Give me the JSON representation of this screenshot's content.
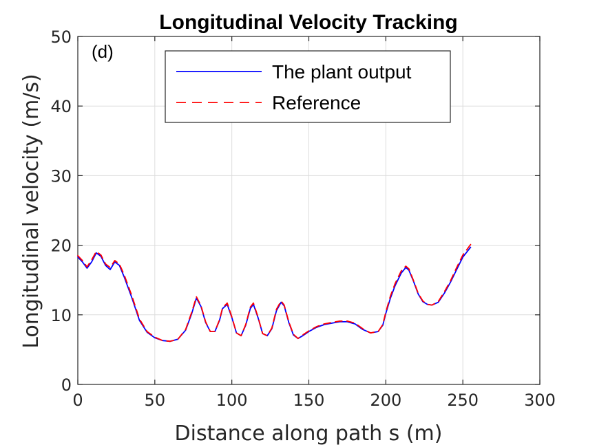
{
  "chart_data": {
    "type": "line",
    "title": "Longitudinal Velocity Tracking",
    "annotation": "(d)",
    "xlabel": "Distance along path s (m)",
    "ylabel": "Longitudinal velocity (m/s)",
    "xlim": [
      0,
      300
    ],
    "ylim": [
      0,
      50
    ],
    "xticks": [
      0,
      50,
      100,
      150,
      200,
      250,
      300
    ],
    "yticks": [
      0,
      10,
      20,
      30,
      40,
      50
    ],
    "xtick_labels": [
      "0",
      "50",
      "100",
      "150",
      "200",
      "250",
      "300"
    ],
    "ytick_labels": [
      "0",
      "10",
      "20",
      "30",
      "40",
      "50"
    ],
    "grid": true,
    "legend_position": "top",
    "series": [
      {
        "name": "The plant output",
        "color": "#0000ff",
        "style": "solid",
        "x": [
          0,
          3,
          6,
          9,
          12,
          15,
          18,
          21,
          24,
          27,
          30,
          35,
          40,
          45,
          50,
          55,
          60,
          65,
          70,
          74,
          77,
          80,
          83,
          86,
          89,
          92,
          94,
          97,
          100,
          103,
          106,
          109,
          112,
          114,
          117,
          120,
          123,
          126,
          129,
          132,
          134,
          137,
          140,
          143,
          146,
          150,
          155,
          160,
          165,
          170,
          175,
          180,
          185,
          190,
          195,
          198,
          200,
          203,
          206,
          210,
          213,
          215,
          218,
          221,
          224,
          227,
          230,
          234,
          238,
          242,
          246,
          250,
          255
        ],
        "y": [
          18.3,
          17.6,
          16.7,
          17.6,
          18.9,
          18.4,
          17.1,
          16.5,
          17.6,
          17.1,
          15.5,
          12.5,
          9.2,
          7.5,
          6.7,
          6.3,
          6.2,
          6.5,
          7.8,
          10.2,
          12.4,
          11.2,
          8.9,
          7.6,
          7.6,
          9.2,
          10.9,
          11.5,
          9.6,
          7.4,
          7.0,
          8.5,
          10.9,
          11.5,
          9.6,
          7.3,
          7.0,
          8.0,
          10.6,
          11.8,
          11.3,
          8.9,
          7.1,
          6.6,
          7.0,
          7.6,
          8.2,
          8.6,
          8.8,
          9.0,
          9.0,
          8.7,
          7.9,
          7.4,
          7.6,
          8.5,
          10.2,
          12.4,
          14.2,
          16.0,
          16.8,
          16.4,
          14.8,
          13.0,
          11.9,
          11.5,
          11.4,
          11.8,
          13.1,
          14.7,
          16.5,
          18.3,
          19.7
        ]
      },
      {
        "name": "Reference",
        "color": "#ff0000",
        "style": "dashed",
        "x": [
          0,
          3,
          6,
          9,
          12,
          15,
          18,
          21,
          24,
          27,
          30,
          35,
          40,
          45,
          50,
          55,
          60,
          65,
          70,
          74,
          77,
          80,
          83,
          86,
          89,
          92,
          94,
          97,
          100,
          103,
          106,
          109,
          112,
          114,
          117,
          120,
          123,
          126,
          129,
          132,
          134,
          137,
          140,
          143,
          146,
          150,
          155,
          160,
          165,
          170,
          175,
          180,
          185,
          190,
          195,
          198,
          200,
          203,
          206,
          210,
          213,
          215,
          218,
          221,
          224,
          227,
          230,
          234,
          238,
          242,
          246,
          250,
          255
        ],
        "y": [
          18.5,
          17.8,
          16.9,
          17.9,
          19.1,
          18.6,
          17.3,
          16.8,
          17.8,
          17.3,
          15.8,
          12.8,
          9.4,
          7.6,
          6.8,
          6.3,
          6.2,
          6.5,
          7.9,
          10.4,
          12.6,
          11.3,
          9.0,
          7.6,
          7.6,
          9.3,
          11.0,
          11.7,
          9.7,
          7.4,
          7.0,
          8.6,
          11.1,
          11.7,
          9.7,
          7.3,
          7.0,
          8.1,
          10.8,
          12.0,
          11.4,
          9.0,
          7.2,
          6.6,
          7.1,
          7.7,
          8.3,
          8.7,
          8.9,
          9.1,
          9.1,
          8.8,
          8.0,
          7.4,
          7.6,
          8.6,
          10.4,
          12.7,
          14.5,
          16.3,
          17.0,
          16.6,
          14.9,
          13.1,
          12.0,
          11.5,
          11.4,
          11.9,
          13.3,
          14.9,
          16.8,
          18.6,
          20.1
        ]
      }
    ]
  }
}
